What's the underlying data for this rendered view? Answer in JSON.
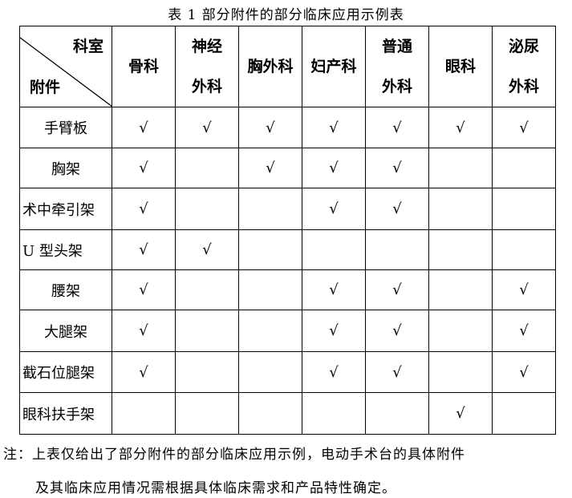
{
  "title": "表 1  部分附件的部分临床应用示例表",
  "header": {
    "corner_top": "科室",
    "corner_bottom": "附件",
    "columns": [
      [
        "骨科"
      ],
      [
        "神经",
        "外科"
      ],
      [
        "胸外科"
      ],
      [
        "妇产科"
      ],
      [
        "普通",
        "外科"
      ],
      [
        "眼科"
      ],
      [
        "泌尿",
        "外科"
      ]
    ]
  },
  "check_mark": "√",
  "rows": [
    {
      "name": "手臂板",
      "marks": [
        "√",
        "√",
        "√",
        "√",
        "√",
        "√",
        "√"
      ]
    },
    {
      "name": "胸架",
      "marks": [
        "√",
        "",
        "√",
        "√",
        "√",
        "",
        ""
      ]
    },
    {
      "name": "术中牵引架",
      "marks": [
        "√",
        "",
        "",
        "√",
        "√",
        "",
        ""
      ]
    },
    {
      "name": "U 型头架",
      "marks": [
        "√",
        "√",
        "",
        "",
        "",
        "",
        ""
      ]
    },
    {
      "name": "腰架",
      "marks": [
        "√",
        "",
        "",
        "√",
        "√",
        "",
        "√"
      ]
    },
    {
      "name": "大腿架",
      "marks": [
        "√",
        "",
        "",
        "√",
        "√",
        "",
        "√"
      ]
    },
    {
      "name": "截石位腿架",
      "marks": [
        "√",
        "",
        "",
        "√",
        "√",
        "",
        "√"
      ]
    },
    {
      "name": "眼科扶手架",
      "marks": [
        "",
        "",
        "",
        "",
        "",
        "√",
        ""
      ]
    }
  ],
  "note": {
    "line1": "注：上表仅给出了部分附件的部分临床应用示例，电动手术台的具体附件",
    "line2": "及其临床应用情况需根据具体临床需求和产品特性确定。"
  }
}
